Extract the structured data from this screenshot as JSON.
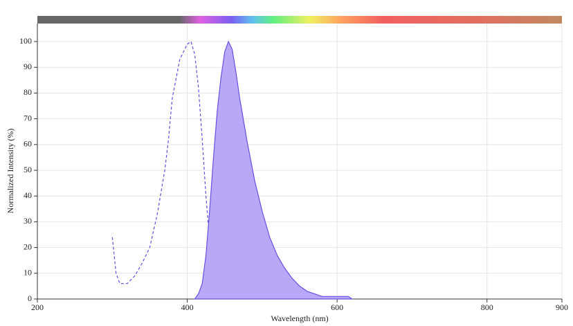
{
  "chart_data": {
    "type": "line",
    "x_label": "Wavelength (nm)",
    "y_label": "Normalized Intensity (%)",
    "xlim": [
      200,
      900
    ],
    "xticks": [
      200,
      400,
      600,
      800,
      900
    ],
    "ylim": [
      0,
      107
    ],
    "yticks": [
      0,
      10,
      20,
      30,
      40,
      50,
      60,
      70,
      80,
      90,
      100
    ],
    "grid": true,
    "series": [
      {
        "color": "#5b4fe0",
        "dashed": true,
        "filled": false,
        "x": [
          300,
          305,
          310,
          320,
          330,
          340,
          350,
          360,
          370,
          375,
          380,
          390,
          400,
          405,
          410,
          415,
          420,
          425,
          430,
          435,
          440,
          450,
          460
        ],
        "values": [
          24,
          10,
          6,
          6,
          9,
          14,
          20,
          33,
          50,
          62,
          78,
          93,
          99,
          100,
          95,
          82,
          62,
          40,
          22,
          12,
          6,
          2,
          0
        ]
      },
      {
        "color": "#6a4fe0",
        "fill_color": "#b9a8f7",
        "dashed": false,
        "filled": true,
        "x": [
          410,
          415,
          420,
          425,
          430,
          435,
          440,
          445,
          450,
          455,
          460,
          465,
          470,
          480,
          490,
          500,
          510,
          520,
          530,
          540,
          550,
          560,
          580,
          615,
          620
        ],
        "values": [
          0,
          2,
          6,
          17,
          35,
          55,
          73,
          86,
          96,
          100,
          97,
          88,
          78,
          61,
          46,
          34,
          24,
          17,
          12,
          8,
          5,
          3,
          1,
          1,
          0
        ]
      }
    ]
  }
}
